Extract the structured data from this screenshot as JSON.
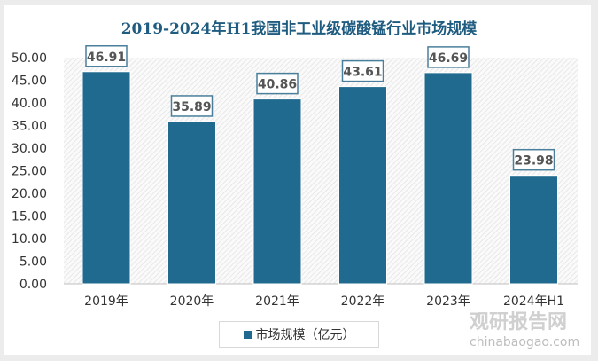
{
  "chart_data": {
    "type": "bar",
    "title": "2019-2024年H1我国非工业级碳酸锰行业市场规模",
    "categories": [
      "2019年",
      "2020年",
      "2021年",
      "2022年",
      "2023年",
      "2024年H1"
    ],
    "series": [
      {
        "name": "市场规模（亿元）",
        "values": [
          46.91,
          35.89,
          40.86,
          43.61,
          46.69,
          23.98
        ]
      }
    ],
    "value_labels": [
      "46.91",
      "35.89",
      "40.86",
      "43.61",
      "46.69",
      "23.98"
    ],
    "ylim": [
      0,
      50
    ],
    "yticks": [
      "0.00",
      "5.00",
      "10.00",
      "15.00",
      "20.00",
      "25.00",
      "30.00",
      "35.00",
      "40.00",
      "45.00",
      "50.00"
    ],
    "legend": "bottom",
    "bar_color": "#1f6a8e",
    "title_color": "#1f5c80"
  },
  "watermark": {
    "name": "观研报告网",
    "url": "chinabaogao.com"
  }
}
